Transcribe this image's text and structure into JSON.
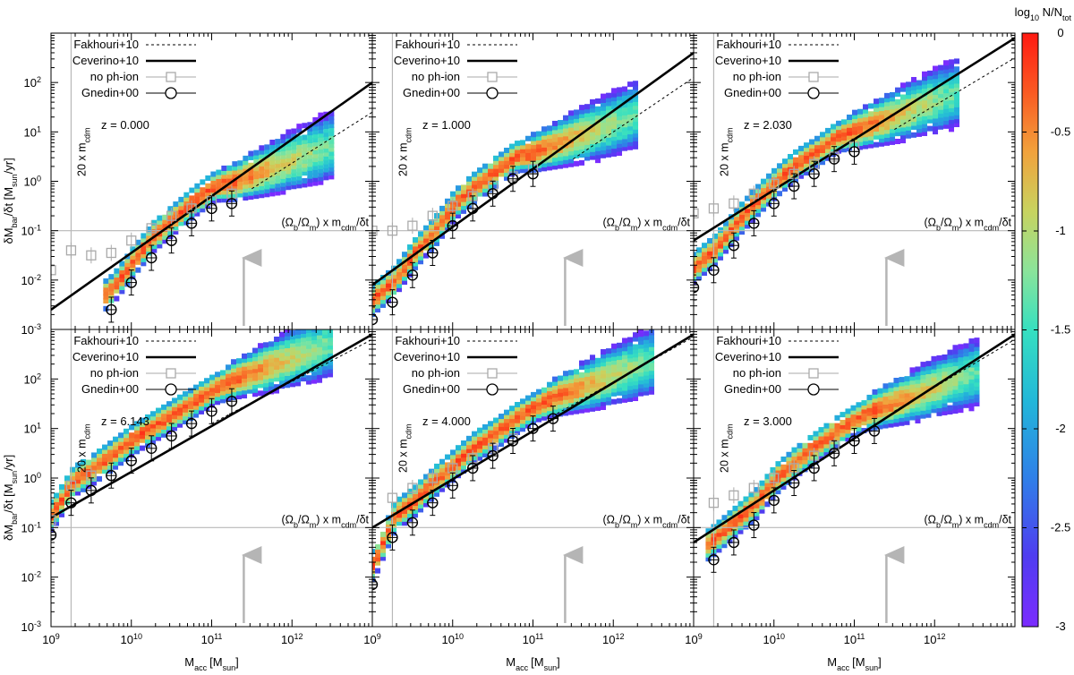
{
  "chart_data": {
    "type": "heatmap",
    "x_axis": {
      "label": "M",
      "label_sub": "acc",
      "label_tail": "[M",
      "unit_sub": "sun",
      "label_close": "]",
      "range_log10": [
        9,
        13
      ],
      "ticks": [
        {
          "base": "10",
          "exp": "9"
        },
        {
          "base": "10",
          "exp": "10"
        },
        {
          "base": "10",
          "exp": "11"
        },
        {
          "base": "10",
          "exp": "12"
        }
      ]
    },
    "y_axis": {
      "label_parts": [
        {
          "t": "δM"
        },
        {
          "t": "bar",
          "sub": true
        },
        {
          "t": "/δt [M"
        },
        {
          "t": "sun",
          "sub": true
        },
        {
          "t": "/yr]"
        }
      ],
      "range_log10": [
        -3,
        3
      ],
      "ticks": [
        {
          "base": "10",
          "exp": "-3"
        },
        {
          "base": "10",
          "exp": "-2"
        },
        {
          "base": "10",
          "exp": "-1"
        },
        {
          "base": "10",
          "exp": "0"
        },
        {
          "base": "10",
          "exp": "1"
        },
        {
          "base": "10",
          "exp": "2"
        }
      ]
    },
    "colorbar": {
      "label_parts": [
        {
          "t": "log"
        },
        {
          "t": "10",
          "sub": true
        },
        {
          "t": " N/N"
        },
        {
          "t": "tot",
          "sub": true
        }
      ],
      "range": [
        -3,
        0
      ],
      "ticks": [
        "0",
        "-0.5",
        "-1",
        "-1.5",
        "-2",
        "-2.5",
        "-3"
      ]
    },
    "legend": [
      {
        "label": "Fakhouri+10",
        "style": "dashed-line"
      },
      {
        "label": "Ceverino+10",
        "style": "thick-line"
      },
      {
        "label": "no ph-ion",
        "style": "gray-square"
      },
      {
        "label": "Gnedin+00",
        "style": "open-circle"
      }
    ],
    "reference_lines": {
      "vertical_label_parts": [
        {
          "t": "20 x m"
        },
        {
          "t": "cdm",
          "sub": true
        }
      ],
      "horizontal_label_parts": [
        {
          "t": "(Ω"
        },
        {
          "t": "b",
          "sub": true
        },
        {
          "t": "/Ω"
        },
        {
          "t": "m",
          "sub": true
        },
        {
          "t": ") x m"
        },
        {
          "t": "cdm",
          "sub": true
        },
        {
          "t": "/δt"
        }
      ],
      "vertical_log10M": 9.25,
      "horizontal_log10_rate": -1,
      "arrow_log10M": 11.4
    },
    "panels": [
      {
        "z_label": "z = 0.000",
        "ceverino_line": [
          [
            9,
            -2.6
          ],
          [
            13,
            2.0
          ]
        ],
        "fakhouri_line": [
          [
            11.5,
            -0.15
          ],
          [
            13,
            1.4
          ]
        ],
        "gnedin_points": [
          [
            9.75,
            -2.6
          ],
          [
            10.0,
            -2.05
          ],
          [
            10.25,
            -1.55
          ],
          [
            10.5,
            -1.2
          ],
          [
            10.75,
            -0.85
          ],
          [
            11.0,
            -0.55
          ],
          [
            11.25,
            -0.45
          ]
        ],
        "no_phion_points": [
          [
            9.0,
            -1.8
          ],
          [
            9.25,
            -1.4
          ],
          [
            9.5,
            -1.5
          ],
          [
            9.75,
            -1.45
          ],
          [
            10.0,
            -1.2
          ],
          [
            10.25,
            -0.95
          ],
          [
            10.5,
            -0.7
          ],
          [
            10.75,
            -0.55
          ],
          [
            11.0,
            -0.4
          ],
          [
            11.25,
            -0.25
          ]
        ]
      },
      {
        "z_label": "z = 1.000",
        "ceverino_line": [
          [
            9,
            -2.1
          ],
          [
            13,
            2.6
          ]
        ],
        "fakhouri_line": [
          [
            11.5,
            0.45
          ],
          [
            13,
            2.1
          ]
        ],
        "gnedin_points": [
          [
            9.0,
            -2.8
          ],
          [
            9.25,
            -2.45
          ],
          [
            9.5,
            -1.9
          ],
          [
            9.75,
            -1.45
          ],
          [
            10.0,
            -0.9
          ],
          [
            10.25,
            -0.55
          ],
          [
            10.5,
            -0.25
          ],
          [
            10.75,
            0.05
          ],
          [
            11.0,
            0.15
          ]
        ],
        "no_phion_points": [
          [
            9.0,
            -1.0
          ],
          [
            9.25,
            -1.0
          ],
          [
            9.5,
            -0.9
          ],
          [
            9.75,
            -0.7
          ],
          [
            10.0,
            -0.5
          ],
          [
            10.25,
            -0.3
          ],
          [
            10.5,
            -0.1
          ],
          [
            10.75,
            0.1
          ],
          [
            11.0,
            0.25
          ]
        ]
      },
      {
        "z_label": "z = 2.030",
        "ceverino_line": [
          [
            9,
            -1.2
          ],
          [
            13,
            2.9
          ]
        ],
        "fakhouri_line": [
          [
            11.5,
            1.05
          ],
          [
            13,
            2.5
          ]
        ],
        "gnedin_points": [
          [
            9.0,
            -2.15
          ],
          [
            9.25,
            -1.8
          ],
          [
            9.5,
            -1.3
          ],
          [
            9.75,
            -0.85
          ],
          [
            10.0,
            -0.45
          ],
          [
            10.25,
            -0.1
          ],
          [
            10.5,
            0.15
          ],
          [
            10.75,
            0.45
          ],
          [
            11.0,
            0.6
          ]
        ],
        "no_phion_points": [
          [
            9.0,
            -0.65
          ],
          [
            9.25,
            -0.55
          ],
          [
            9.5,
            -0.45
          ],
          [
            9.75,
            -0.25
          ],
          [
            10.0,
            -0.05
          ],
          [
            10.25,
            0.15
          ],
          [
            10.5,
            0.35
          ],
          [
            10.75,
            0.5
          ],
          [
            11.0,
            0.7
          ]
        ]
      },
      {
        "z_label": "z = 6.143",
        "ceverino_line": [
          [
            9,
            -0.8
          ],
          [
            13,
            2.9
          ]
        ],
        "fakhouri_line": [
          [
            11.0,
            1.1
          ],
          [
            13,
            2.8
          ]
        ],
        "gnedin_points": [
          [
            9.0,
            -1.15
          ],
          [
            9.25,
            -0.5
          ],
          [
            9.5,
            -0.25
          ],
          [
            9.75,
            0.05
          ],
          [
            10.0,
            0.35
          ],
          [
            10.25,
            0.6
          ],
          [
            10.5,
            0.85
          ],
          [
            10.75,
            1.1
          ],
          [
            11.0,
            1.35
          ],
          [
            11.25,
            1.55
          ]
        ],
        "no_phion_points": [
          [
            9.0,
            -0.85
          ],
          [
            9.25,
            -0.15
          ],
          [
            9.5,
            0.05
          ]
        ]
      },
      {
        "z_label": "z = 4.000",
        "ceverino_line": [
          [
            9,
            -1.0
          ],
          [
            13,
            2.9
          ]
        ],
        "fakhouri_line": [
          [
            11.3,
            1.3
          ],
          [
            13,
            2.85
          ]
        ],
        "gnedin_points": [
          [
            9.0,
            -2.15
          ],
          [
            9.25,
            -1.2
          ],
          [
            9.5,
            -0.9
          ],
          [
            9.75,
            -0.5
          ],
          [
            10.0,
            -0.15
          ],
          [
            10.25,
            0.2
          ],
          [
            10.5,
            0.45
          ],
          [
            10.75,
            0.75
          ],
          [
            11.0,
            1.0
          ],
          [
            11.25,
            1.2
          ]
        ],
        "no_phion_points": [
          [
            9.25,
            -0.4
          ],
          [
            9.5,
            -0.2
          ],
          [
            9.75,
            0.0
          ],
          [
            10.0,
            0.2
          ],
          [
            10.25,
            0.4
          ],
          [
            10.5,
            0.6
          ],
          [
            10.75,
            0.8
          ]
        ]
      },
      {
        "z_label": "z = 3.000",
        "ceverino_line": [
          [
            9,
            -1.3
          ],
          [
            13,
            2.9
          ]
        ],
        "fakhouri_line": [
          [
            11.5,
            1.35
          ],
          [
            13,
            2.8
          ]
        ],
        "gnedin_points": [
          [
            9.25,
            -1.65
          ],
          [
            9.5,
            -1.3
          ],
          [
            9.75,
            -0.95
          ],
          [
            10.0,
            -0.45
          ],
          [
            10.25,
            -0.1
          ],
          [
            10.5,
            0.2
          ],
          [
            10.75,
            0.5
          ],
          [
            11.0,
            0.75
          ],
          [
            11.25,
            0.95
          ]
        ],
        "no_phion_points": [
          [
            9.25,
            -0.5
          ],
          [
            9.5,
            -0.35
          ],
          [
            9.75,
            -0.2
          ],
          [
            10.0,
            0.0
          ],
          [
            10.25,
            0.2
          ],
          [
            10.5,
            0.45
          ],
          [
            10.75,
            0.65
          ]
        ]
      }
    ]
  }
}
